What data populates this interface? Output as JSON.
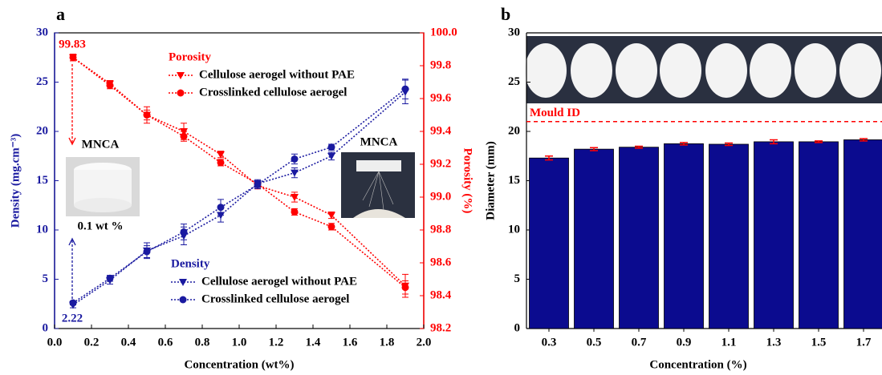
{
  "chart_data": [
    {
      "type": "line",
      "panel_label": "a",
      "x_label": "Concentration (wt%)",
      "y_label": "Density (mg.cm⁻³)",
      "y2_label": "Porosity (%)",
      "x": [
        0.1,
        0.3,
        0.5,
        0.7,
        0.9,
        1.1,
        1.3,
        1.5,
        1.9
      ],
      "xlim": [
        0,
        2
      ],
      "xticks": [
        {
          "value": 0,
          "label": "0.0"
        },
        0.2,
        0.4,
        0.6,
        0.8,
        {
          "value": 1,
          "label": "1.0"
        },
        1.2,
        1.4,
        1.6,
        1.8,
        {
          "value": 2,
          "label": "2.0"
        }
      ],
      "ylim": [
        0,
        30
      ],
      "yticks": [
        0,
        5,
        10,
        15,
        20,
        25,
        30
      ],
      "y2lim": [
        98.2,
        100
      ],
      "y2ticks": [
        98.2,
        98.4,
        98.6,
        98.8,
        {
          "value": 99,
          "label": "99.0"
        },
        99.2,
        99.4,
        99.6,
        99.8,
        {
          "value": 100,
          "label": "100.0"
        }
      ],
      "legend_titles": [
        "Porosity",
        "Density"
      ],
      "series": [
        {
          "name": "Cellulose aerogel without PAE",
          "color": "#ff0000",
          "marker": "triangle",
          "axis": "y2",
          "values": [
            99.85,
            99.69,
            99.5,
            99.4,
            99.26,
            99.07,
            99.0,
            98.89,
            98.46
          ],
          "errors": [
            0.02,
            0.02,
            0.05,
            0.05,
            0.02,
            0.02,
            0.03,
            0.02,
            0.07
          ]
        },
        {
          "name": "Crosslinked cellulose aerogel",
          "color": "#ff0000",
          "marker": "circle",
          "axis": "y2",
          "values": [
            99.85,
            99.68,
            99.5,
            99.37,
            99.21,
            99.08,
            98.91,
            98.82,
            98.45
          ],
          "errors": [
            0.02,
            0.02,
            0.03,
            0.03,
            0.02,
            0.02,
            0.02,
            0.02,
            0.04
          ]
        },
        {
          "name": "Cellulose aerogel without PAE",
          "color": "#1a1aa0",
          "marker": "triangle",
          "values": [
            2.4,
            4.9,
            7.9,
            9.4,
            11.5,
            14.7,
            15.8,
            17.5,
            24.0
          ],
          "errors": [
            0.3,
            0.4,
            0.8,
            0.9,
            0.7,
            0.4,
            0.5,
            0.4,
            1.2
          ]
        },
        {
          "name": "Crosslinked cellulose aerogel",
          "color": "#1a1aa0",
          "marker": "circle",
          "values": [
            2.6,
            5.1,
            7.8,
            9.8,
            12.3,
            14.6,
            17.2,
            18.4,
            24.3
          ],
          "errors": [
            0.2,
            0.3,
            0.6,
            0.8,
            0.8,
            0.4,
            0.5,
            0.3,
            1.0
          ]
        }
      ],
      "annotations": [
        "99.83",
        "2.22",
        "MNCA",
        "0.1 wt %",
        "MNCA"
      ]
    },
    {
      "type": "bar",
      "panel_label": "b",
      "x_label": "Concentration (%)",
      "y_label": "Diameter (mm)",
      "categories": [
        "0.3",
        "0.5",
        "0.7",
        "0.9",
        "1.1",
        "1.3",
        "1.5",
        "1.7"
      ],
      "values": [
        17.3,
        18.2,
        18.4,
        18.75,
        18.7,
        18.95,
        18.95,
        19.15
      ],
      "errors": [
        0.2,
        0.15,
        0.1,
        0.12,
        0.12,
        0.2,
        0.08,
        0.12
      ],
      "color": "#0b0b8f",
      "error_color": "#ff0000",
      "ylim": [
        0,
        30
      ],
      "yticks": [
        0,
        5,
        10,
        15,
        20,
        25,
        30
      ],
      "reference": {
        "value": 21,
        "label": "Mould ID",
        "color": "#ff0000"
      }
    }
  ]
}
